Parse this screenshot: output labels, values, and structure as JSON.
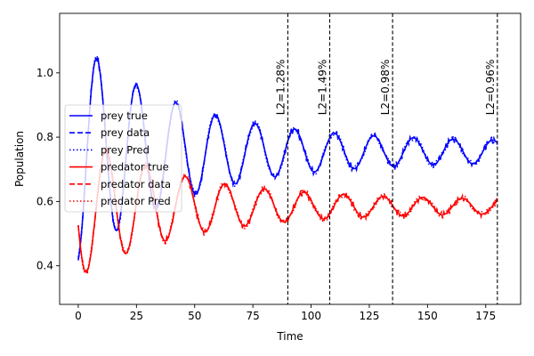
{
  "chart_data": {
    "type": "line",
    "title": "",
    "xlabel": "Time",
    "ylabel": "Population",
    "xlim": [
      -8,
      190
    ],
    "ylim": [
      0.28,
      1.185
    ],
    "xticks": [
      0,
      25,
      50,
      75,
      100,
      125,
      150,
      175
    ],
    "yticks": [
      0.4,
      0.6,
      0.8,
      1.0
    ],
    "ytick_labels": [
      "0.4",
      "0.6",
      "0.8",
      "1.0"
    ],
    "grid": false,
    "legend_position": "center-left",
    "model": {
      "prey": {
        "mean": 0.755,
        "amplitude": 0.31,
        "decay": 0.022,
        "floor": 0.03,
        "period": 17.0,
        "peak_time": 8.0
      },
      "predator": {
        "mean": 0.585,
        "amplitude": 0.2,
        "decay": 0.022,
        "floor": 0.02,
        "period": 17.0,
        "peak_time": 12.0
      },
      "t_start": 0,
      "t_end": 180
    },
    "series": [
      {
        "name": "prey true",
        "color": "#0000ff",
        "style": "solid"
      },
      {
        "name": "prey data",
        "color": "#0000ff",
        "style": "dashed"
      },
      {
        "name": "prey Pred",
        "color": "#0000ff",
        "style": "dotted"
      },
      {
        "name": "predator true",
        "color": "#ff0000",
        "style": "solid"
      },
      {
        "name": "predator data",
        "color": "#ff0000",
        "style": "dashed"
      },
      {
        "name": "predator Pred",
        "color": "#ff0000",
        "style": "dotted"
      }
    ],
    "vlines": [
      {
        "x": 90,
        "label": "L2=1.28%"
      },
      {
        "x": 108,
        "label": "L2=1.49%"
      },
      {
        "x": 135,
        "label": "L2=0.98%"
      },
      {
        "x": 180,
        "label": "L2=0.96%"
      }
    ]
  }
}
